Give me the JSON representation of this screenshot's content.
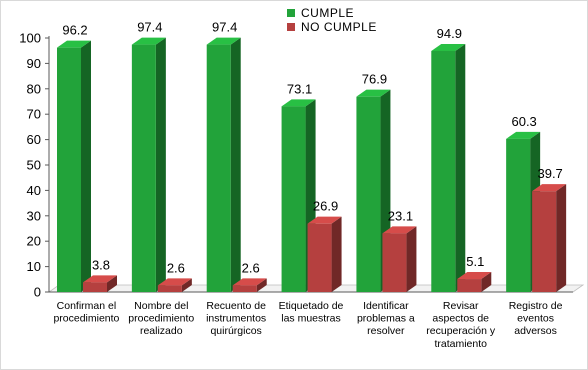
{
  "chart_data": {
    "type": "bar",
    "title": "",
    "xlabel": "",
    "ylabel": "",
    "ylim": [
      0,
      100
    ],
    "yticks": [
      0,
      10,
      20,
      30,
      40,
      50,
      60,
      70,
      80,
      90,
      100
    ],
    "grid": false,
    "style": "3d-columns",
    "legend_position": "top-center",
    "categories": [
      [
        "Confirman el",
        "procedimiento"
      ],
      [
        "Nombre del",
        "procedimiento",
        "realizado"
      ],
      [
        "Recuento de",
        "instrumentos",
        "quirúrgicos"
      ],
      [
        "Etiquetado de",
        "las muestras"
      ],
      [
        "Identificar",
        "problemas a",
        "resolver"
      ],
      [
        "Revisar",
        "aspectos de",
        "recuperación y",
        "tratamiento"
      ],
      [
        "Registro de",
        "eventos",
        "adversos"
      ]
    ],
    "series": [
      {
        "name": "CUMPLE",
        "color": "#22a33a",
        "values": [
          96.2,
          97.4,
          97.4,
          73.1,
          76.9,
          94.9,
          60.3
        ]
      },
      {
        "name": "NO CUMPLE",
        "color": "#b5403f",
        "values": [
          3.8,
          2.6,
          2.6,
          26.9,
          23.1,
          5.1,
          39.7
        ]
      }
    ]
  }
}
